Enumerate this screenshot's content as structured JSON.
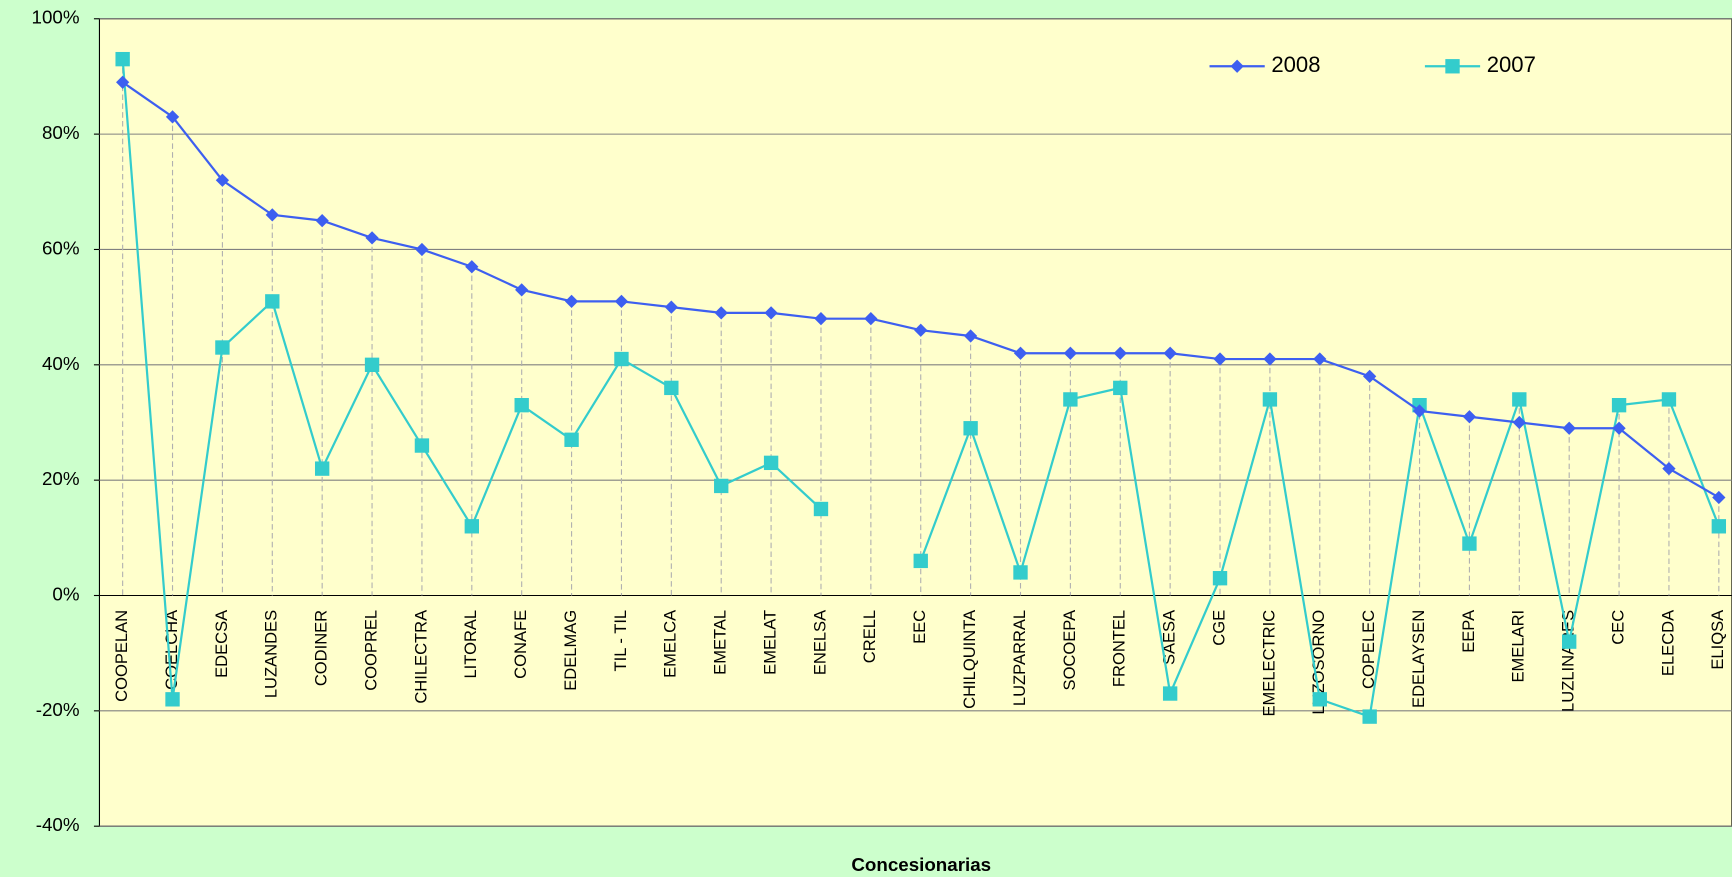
{
  "chart_data": {
    "type": "line",
    "x_label": "Concesionarias",
    "categories": [
      "COOPELAN",
      "COELCHA",
      "EDECSA",
      "LUZANDES",
      "CODINER",
      "COOPREL",
      "CHILECTRA",
      "LITORAL",
      "CONAFE",
      "EDELMAG",
      "TIL - TIL",
      "EMELCA",
      "EMETAL",
      "EMELAT",
      "ENELSA",
      "CRELL",
      "EEC",
      "CHILQUINTA",
      "LUZPARRAL",
      "SOCOEPA",
      "FRONTEL",
      "SAESA",
      "CGE",
      "EMELECTRIC",
      "LUZOSORNO",
      "COPELEC",
      "EDELAYSEN",
      "EEPA",
      "EMELARI",
      "LUZLINARES",
      "CEC",
      "ELECDA",
      "ELIQSA"
    ],
    "series": [
      {
        "name": "2008",
        "color": "#3d5ff0",
        "marker": "diamond",
        "values": [
          89,
          83,
          72,
          66,
          65,
          62,
          60,
          57,
          53,
          51,
          51,
          50,
          49,
          49,
          48,
          48,
          46,
          45,
          42,
          42,
          42,
          42,
          41,
          41,
          41,
          38,
          32,
          31,
          30,
          29,
          29,
          22,
          17
        ]
      },
      {
        "name": "2007",
        "color": "#33cccc",
        "marker": "square",
        "values": [
          93,
          -18,
          43,
          51,
          22,
          40,
          26,
          12,
          33,
          27,
          41,
          36,
          19,
          23,
          15,
          null,
          6,
          29,
          4,
          34,
          36,
          -17,
          3,
          34,
          -18,
          -21,
          33,
          9,
          34,
          -8,
          33,
          34,
          12
        ]
      }
    ],
    "ylim": [
      -40,
      100
    ],
    "yticks": [
      {
        "value": -40,
        "label": "-40%"
      },
      {
        "value": -20,
        "label": "-20%"
      },
      {
        "value": 0,
        "label": "0%"
      },
      {
        "value": 20,
        "label": "20%"
      },
      {
        "value": 40,
        "label": "40%"
      },
      {
        "value": 60,
        "label": "60%"
      },
      {
        "value": 80,
        "label": "80%"
      },
      {
        "value": 100,
        "label": "100%"
      }
    ],
    "grid": true,
    "drop_lines": true,
    "legend": "top-right"
  }
}
